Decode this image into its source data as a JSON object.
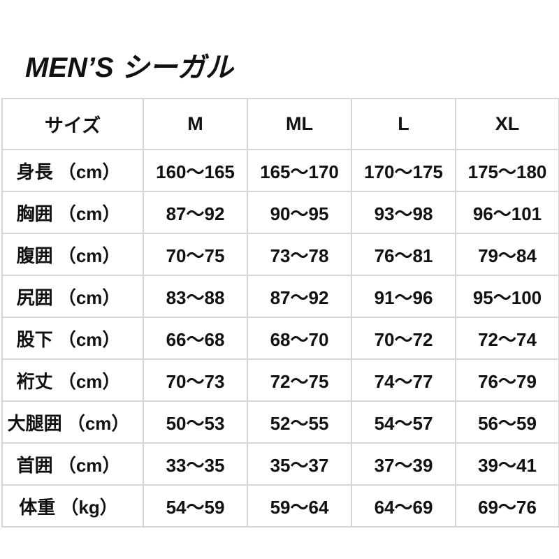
{
  "title": "MEN’S シーガル",
  "header": [
    "サイズ",
    "M",
    "ML",
    "L",
    "XL"
  ],
  "rows": [
    {
      "label": "身長 （cm）",
      "values": [
        "160〜165",
        "165〜170",
        "170〜175",
        "175〜180"
      ]
    },
    {
      "label": "胸囲 （cm）",
      "values": [
        "87〜92",
        "90〜95",
        "93〜98",
        "96〜101"
      ]
    },
    {
      "label": "腹囲 （cm）",
      "values": [
        "70〜75",
        "73〜78",
        "76〜81",
        "79〜84"
      ]
    },
    {
      "label": "尻囲 （cm）",
      "values": [
        "83〜88",
        "87〜92",
        "91〜96",
        "95〜100"
      ]
    },
    {
      "label": "股下 （cm）",
      "values": [
        "66〜68",
        "68〜70",
        "70〜72",
        "72〜74"
      ]
    },
    {
      "label": "裄丈 （cm）",
      "values": [
        "70〜73",
        "72〜75",
        "74〜77",
        "76〜79"
      ]
    },
    {
      "label": "大腿囲 （cm）",
      "values": [
        "50〜53",
        "52〜55",
        "54〜57",
        "56〜59"
      ]
    },
    {
      "label": "首囲 （cm）",
      "values": [
        "33〜35",
        "35〜37",
        "37〜39",
        "39〜41"
      ]
    },
    {
      "label": "体重 （kg）",
      "values": [
        "54〜59",
        "59〜64",
        "64〜69",
        "69〜76"
      ]
    }
  ],
  "colors": {
    "border": "#d6d6d6",
    "text": "#111111"
  }
}
